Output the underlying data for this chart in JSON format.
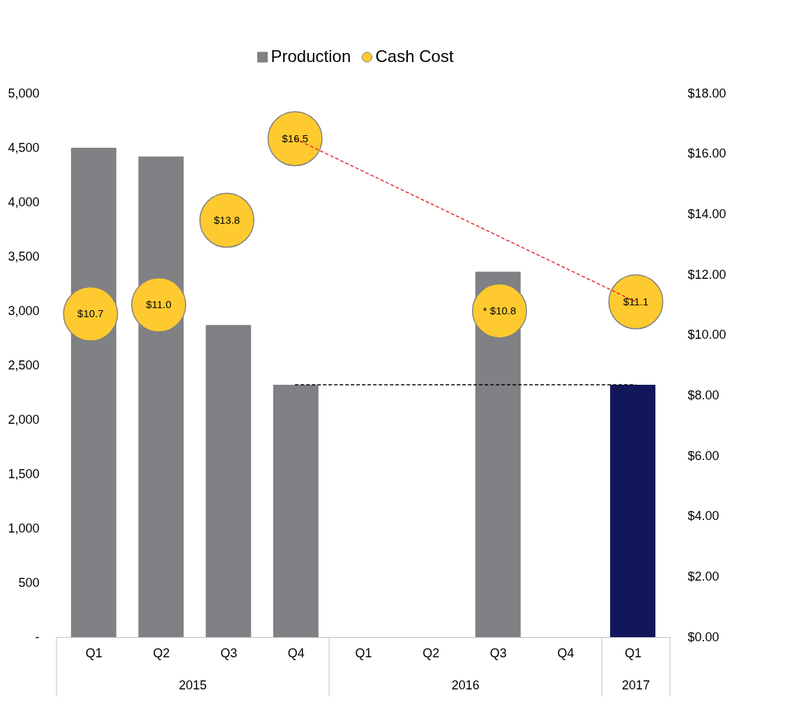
{
  "chart_data": {
    "type": "bar",
    "categories": [
      "Q1",
      "Q2",
      "Q3",
      "Q4",
      "Q1",
      "Q2",
      "Q3",
      "Q4",
      "Q1"
    ],
    "series": [
      {
        "name": "Production",
        "color": "#808184",
        "colors": [
          "#808184",
          "#808184",
          "#808184",
          "#808184",
          "#808184",
          "#808184",
          "#808184",
          "#808184",
          "#12175c"
        ],
        "values": [
          4500,
          4420,
          2870,
          2320,
          null,
          null,
          3360,
          null,
          2320
        ]
      },
      {
        "type": "line",
        "color": "#000000",
        "line_style": "dashed",
        "values": [
          null,
          null,
          null,
          2320,
          null,
          null,
          null,
          null,
          2320
        ]
      },
      {
        "type": "line",
        "axis": "y2",
        "color": "#e8262a",
        "line_style": "dashed",
        "values": [
          null,
          null,
          null,
          16.5,
          null,
          null,
          null,
          null,
          11.1
        ]
      },
      {
        "name": "Cash Cost",
        "type": "scatter",
        "axis": "y2",
        "marker": "circle",
        "color": "#ffca2f",
        "values": [
          10.7,
          11.0,
          13.8,
          16.5,
          null,
          null,
          10.8,
          null,
          11.1
        ],
        "value_labels": [
          "$10.7",
          "$11.0",
          "$13.8",
          "$16.5",
          null,
          null,
          "* $10.8",
          null,
          "$11.1"
        ]
      }
    ],
    "ylim": [
      0,
      5000
    ],
    "yticks": [
      {
        "value": 0,
        "label": "-"
      },
      {
        "value": 500,
        "label": "500"
      },
      {
        "value": 1000,
        "label": "1,000"
      },
      {
        "value": 1500,
        "label": "1,500"
      },
      {
        "value": 2000,
        "label": "2,000"
      },
      {
        "value": 2500,
        "label": "2,500"
      },
      {
        "value": 3000,
        "label": "3,000"
      },
      {
        "value": 3500,
        "label": "3,500"
      },
      {
        "value": 4000,
        "label": "4,000"
      },
      {
        "value": 4500,
        "label": "4,500"
      },
      {
        "value": 5000,
        "label": "5,000"
      }
    ],
    "y2lim": [
      0,
      18
    ],
    "y2ticks": [
      {
        "value": 0,
        "label": "$0.00"
      },
      {
        "value": 2,
        "label": "$2.00"
      },
      {
        "value": 4,
        "label": "$4.00"
      },
      {
        "value": 6,
        "label": "$6.00"
      },
      {
        "value": 8,
        "label": "$8.00"
      },
      {
        "value": 10,
        "label": "$10.00"
      },
      {
        "value": 12,
        "label": "$12.00"
      },
      {
        "value": 14,
        "label": "$14.00"
      },
      {
        "value": 16,
        "label": "$16.00"
      },
      {
        "value": 18,
        "label": "$18.00"
      }
    ],
    "annotations": [
      "2015",
      "2016",
      "2017"
    ],
    "legend": "top",
    "grid": false
  }
}
